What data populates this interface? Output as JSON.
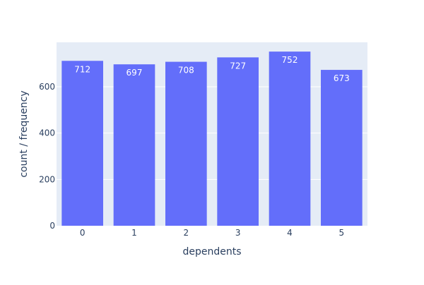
{
  "chart_data": {
    "type": "bar",
    "title": "",
    "xlabel": "dependents",
    "ylabel": "count / frequency",
    "categories": [
      "0",
      "1",
      "2",
      "3",
      "4",
      "5"
    ],
    "values": [
      712,
      697,
      708,
      727,
      752,
      673
    ],
    "data_labels": [
      "712",
      "697",
      "708",
      "727",
      "752",
      "673"
    ],
    "y_ticks": [
      0,
      200,
      400,
      600
    ],
    "y_tick_labels": [
      "0",
      "200",
      "400",
      "600"
    ],
    "ylim": [
      0,
      792
    ],
    "grid": true,
    "legend": "none",
    "colors": {
      "bar": "#636efa",
      "plot_background": "#e5ecf6",
      "gridline": "#ffffff",
      "axis_text": "#2a3f5f",
      "data_label": "#ffffff"
    }
  }
}
